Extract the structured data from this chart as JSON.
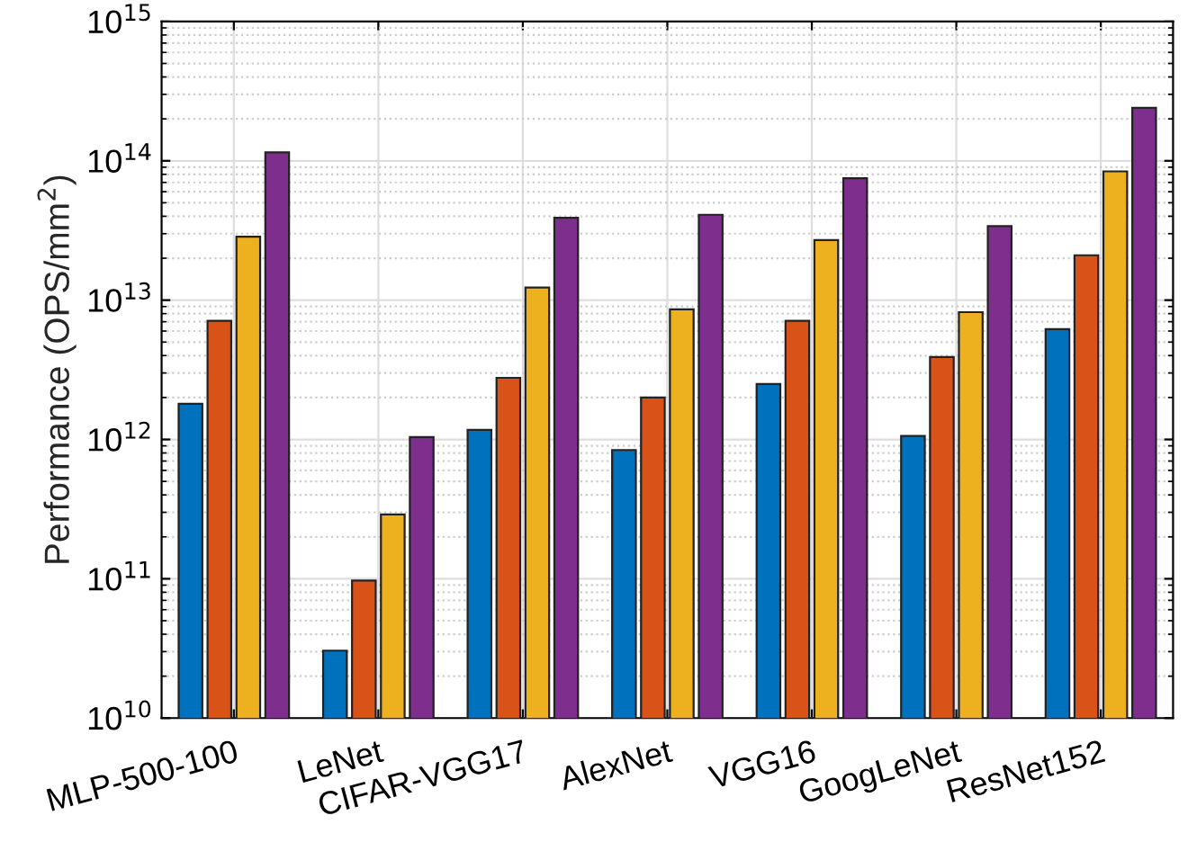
{
  "chart_data": {
    "type": "bar",
    "ylabel": "Performance (OPS/mm$^{2}$)",
    "categories": [
      "MLP-500-100",
      "LeNet",
      "CIFAR-VGG17",
      "AlexNet",
      "VGG16",
      "GoogLeNet",
      "ResNet152"
    ],
    "series": [
      {
        "color": "#0072bd",
        "values": [
          1800000000000.0,
          30500000000.0,
          1170000000000.0,
          840000000000.0,
          2500000000000.0,
          1060000000000.0,
          6200000000000.0
        ]
      },
      {
        "color": "#d95319",
        "values": [
          7100000000000.0,
          97000000000.0,
          2770000000000.0,
          2000000000000.0,
          7100000000000.0,
          3900000000000.0,
          21000000000000.0
        ]
      },
      {
        "color": "#edb120",
        "values": [
          28500000000000.0,
          290000000000.0,
          12300000000000.0,
          8600000000000.0,
          27000000000000.0,
          8200000000000.0,
          84000000000000.0
        ]
      },
      {
        "color": "#7e2f8e",
        "values": [
          115000000000000.0,
          1040000000000.0,
          39000000000000.0,
          41000000000000.0,
          75000000000000.0,
          34000000000000.0,
          240000000000000.0
        ]
      }
    ],
    "log": true,
    "ylim": [
      10000000000.0,
      1000000000000000.0
    ],
    "yticks": [
      {
        "value": 10000000000.0,
        "label": "10$^{10}$"
      },
      {
        "value": 100000000000.0,
        "label": "10$^{11}$"
      },
      {
        "value": 1000000000000.0,
        "label": "10$^{12}$"
      },
      {
        "value": 10000000000000.0,
        "label": "10$^{13}$"
      },
      {
        "value": 100000000000000.0,
        "label": "10$^{14}$"
      },
      {
        "value": 1000000000000000.0,
        "label": "10$^{15}$"
      }
    ],
    "grid": true
  }
}
